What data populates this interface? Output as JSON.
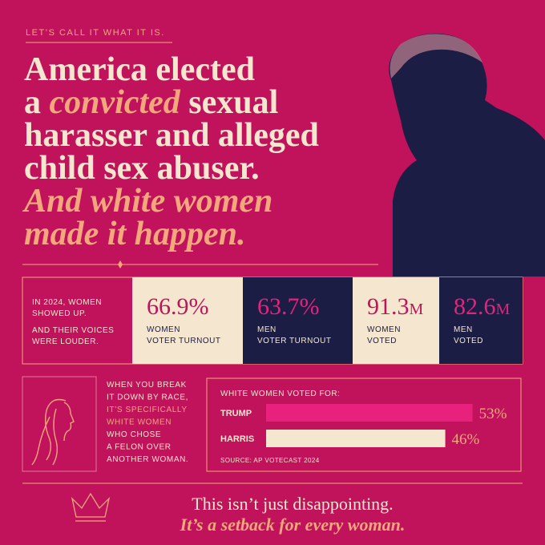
{
  "header": {
    "kicker": "LET’S CALL IT WHAT IT IS.",
    "headline": [
      [
        {
          "text": "America elected"
        }
      ],
      [
        {
          "text": "a "
        },
        {
          "text": "convicted",
          "accent": true
        },
        {
          "text": " sexual"
        }
      ],
      [
        {
          "text": "harasser and alleged"
        }
      ],
      [
        {
          "text": "child sex abuser."
        }
      ],
      [
        {
          "text": "And white women",
          "accent": true
        }
      ],
      [
        {
          "text": "made it happen.",
          "accent": true
        }
      ]
    ]
  },
  "stats": {
    "intro": [
      "IN 2024, WOMEN",
      "SHOWED UP."
    ],
    "intro2": [
      "AND THEIR VOICES",
      "WERE LOUDER."
    ],
    "items": [
      {
        "value": "66.9%",
        "label": [
          "WOMEN",
          "VOTER TURNOUT"
        ],
        "theme": "light"
      },
      {
        "value": "63.7%",
        "label": [
          "MEN",
          "VOTER TURNOUT"
        ],
        "theme": "dark"
      },
      {
        "value": "91.3",
        "unit": "M",
        "label": [
          "WOMEN",
          "VOTED"
        ],
        "theme": "light"
      },
      {
        "value": "82.6",
        "unit": "M",
        "label": [
          "MEN",
          "VOTED"
        ],
        "theme": "dark"
      }
    ]
  },
  "race": {
    "lines": [
      {
        "text": "WHEN YOU BREAK"
      },
      {
        "text": "IT DOWN BY RACE,"
      },
      {
        "text": "IT’S SPECIFICALLY",
        "accent": true
      },
      {
        "text": "WHITE WOMEN",
        "accent": true
      },
      {
        "text": "WHO CHOSE"
      },
      {
        "text": "A FELON OVER"
      },
      {
        "text": "ANOTHER WOMAN."
      }
    ]
  },
  "chart_data": {
    "type": "bar",
    "title": "WHITE WOMEN VOTED FOR:",
    "categories": [
      "TRUMP",
      "HARRIS"
    ],
    "values": [
      53,
      46
    ],
    "value_labels": [
      "53%",
      "46%"
    ],
    "colors": [
      "#e8217c",
      "#f5e6cf"
    ],
    "source": "SOURCE: AP VOTECAST 2024"
  },
  "footer": {
    "line1": "This isn’t just disappointing.",
    "line2": "It’s a setback for every woman."
  }
}
